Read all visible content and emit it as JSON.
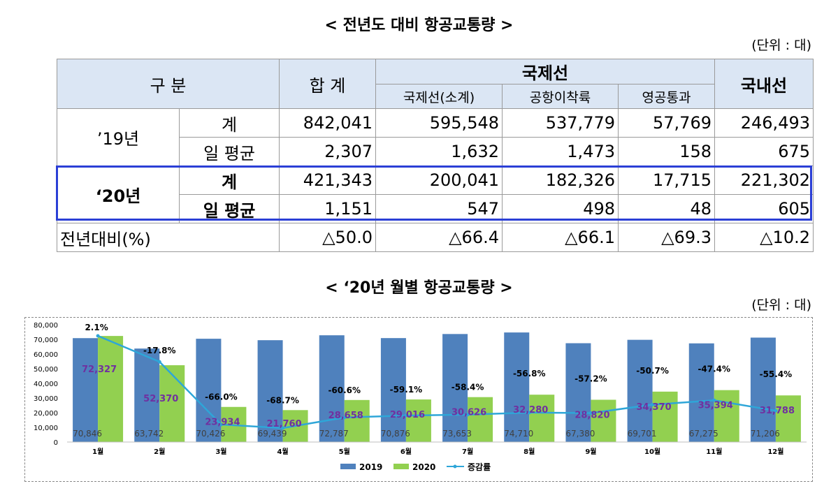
{
  "table_section": {
    "title": "< 전년도 대비 항공교통량 >",
    "unit": "(단위 : 대)",
    "headers": {
      "category": "구 분",
      "total": "합 계",
      "international": "국제선",
      "domestic": "국내선",
      "sub": [
        "국제선(소계)",
        "공항이착륙",
        "영공통과"
      ]
    },
    "rows": [
      {
        "year": "’19년",
        "label": "계",
        "values": [
          "842,041",
          "595,548",
          "537,779",
          "57,769",
          "246,493"
        ]
      },
      {
        "label": "일 평균",
        "values": [
          "2,307",
          "1,632",
          "1,473",
          "158",
          "675"
        ]
      },
      {
        "year": "‘20년",
        "label": "계",
        "values": [
          "421,343",
          "200,041",
          "182,326",
          "17,715",
          "221,302"
        ]
      },
      {
        "label": "일 평균",
        "values": [
          "1,151",
          "547",
          "498",
          "48",
          "605"
        ]
      }
    ],
    "yoy": {
      "label": "전년대비(%)",
      "values": [
        "△50.0",
        "△66.4",
        "△66.1",
        "△69.3",
        "△10.2"
      ]
    }
  },
  "chart_section": {
    "title": "< ‘20년 월별 항공교통량 >",
    "unit": "(단위 : 대)"
  },
  "colors": {
    "bar2019": "#4f81bd",
    "bar2020": "#92d050",
    "line": "#2ea6d8",
    "label2020": "#7030a0",
    "highlight_border": "#2b3fd6",
    "header_bg": "#dbe6f4"
  },
  "chart_data": {
    "type": "bar",
    "categories": [
      "1월",
      "2월",
      "3월",
      "4월",
      "5월",
      "6월",
      "7월",
      "8월",
      "9월",
      "10월",
      "11월",
      "12월"
    ],
    "series": [
      {
        "name": "2019",
        "values": [
          70846,
          63742,
          70426,
          69439,
          72787,
          70876,
          73653,
          74710,
          67380,
          69701,
          67275,
          71206
        ]
      },
      {
        "name": "2020",
        "values": [
          72327,
          52370,
          23934,
          21760,
          28658,
          29016,
          30626,
          32280,
          28820,
          34370,
          35394,
          31788
        ]
      }
    ],
    "line_series": {
      "name": "증감률",
      "values": [
        2.1,
        -17.8,
        -66.0,
        -68.7,
        -60.6,
        -59.1,
        -58.4,
        -56.8,
        -57.2,
        -50.7,
        -47.4,
        -55.4
      ]
    },
    "line_labels": [
      "2.1%",
      "-17.8%",
      "-66.0%",
      "-68.7%",
      "-60.6%",
      "-59.1%",
      "-58.4%",
      "-56.8%",
      "-57.2%",
      "-50.7%",
      "-47.4%",
      "-55.4%"
    ],
    "labels_2019": [
      "70,846",
      "63,742",
      "70,426",
      "69,439",
      "72,787",
      "70,876",
      "73,653",
      "74,710",
      "67,380",
      "69,701",
      "67,275",
      "71,206"
    ],
    "labels_2020": [
      "72,327",
      "52,370",
      "23,934",
      "21,760",
      "28,658",
      "29,016",
      "30,626",
      "32,280",
      "28,820",
      "34,370",
      "35,394",
      "31,788"
    ],
    "yticks": [
      "0",
      "10,000",
      "20,000",
      "30,000",
      "40,000",
      "50,000",
      "60,000",
      "70,000",
      "80,000"
    ],
    "ylim": [
      0,
      80000
    ],
    "legend": "bottom"
  }
}
